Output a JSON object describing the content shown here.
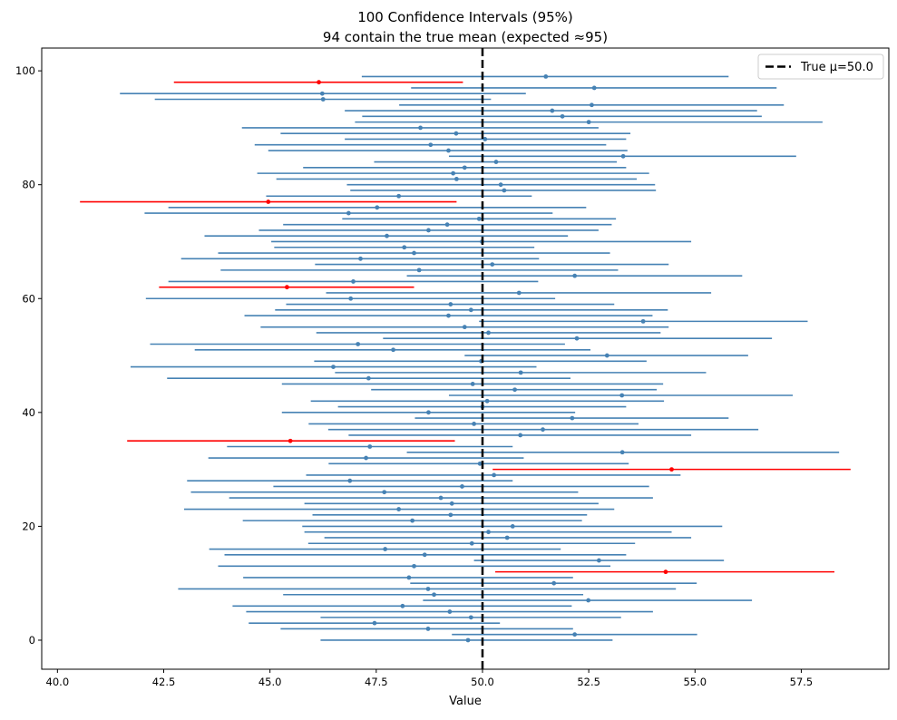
{
  "chart_data": {
    "type": "errorbar",
    "title": "100 Confidence Intervals (95%)",
    "subtitle": "94 contain the true mean (expected ≈95)",
    "xlabel": "Value",
    "ylabel": "",
    "xlim": [
      39.63,
      59.56
    ],
    "ylim": [
      -5.1,
      104.0
    ],
    "x_ticks": [
      "40.0",
      "42.5",
      "45.0",
      "47.5",
      "50.0",
      "52.5",
      "55.0",
      "57.5"
    ],
    "y_ticks": [
      "0",
      "20",
      "40",
      "60",
      "80",
      "100"
    ],
    "true_mean": 50.0,
    "legend": {
      "label": "True μ=50.0",
      "placement": "top-right"
    },
    "colors": {
      "contains": "#4682b4",
      "misses": "#ff0000",
      "true_mean": "#000000"
    },
    "grid": false,
    "intervals": [
      [
        46.19,
        49.66,
        53.06
      ],
      [
        49.28,
        52.17,
        55.05
      ],
      [
        45.25,
        48.72,
        52.13
      ],
      [
        44.5,
        47.46,
        50.41
      ],
      [
        46.19,
        49.73,
        53.26
      ],
      [
        44.44,
        49.23,
        54.01
      ],
      [
        44.12,
        48.12,
        52.1
      ],
      [
        48.6,
        52.49,
        56.34
      ],
      [
        45.31,
        48.86,
        52.37
      ],
      [
        42.84,
        48.72,
        54.55
      ],
      [
        48.3,
        51.68,
        55.04
      ],
      [
        44.37,
        48.27,
        52.13
      ],
      [
        50.3,
        54.31,
        58.28
      ],
      [
        43.78,
        48.39,
        53.01
      ],
      [
        49.8,
        52.74,
        55.68
      ],
      [
        43.93,
        48.64,
        53.38
      ],
      [
        43.57,
        47.71,
        51.84
      ],
      [
        45.9,
        49.75,
        53.59
      ],
      [
        46.28,
        50.58,
        54.91
      ],
      [
        45.81,
        50.14,
        54.45
      ],
      [
        45.76,
        50.71,
        55.64
      ],
      [
        44.36,
        48.35,
        52.34
      ],
      [
        46.0,
        49.25,
        52.46
      ],
      [
        42.98,
        48.03,
        53.1
      ],
      [
        45.81,
        49.28,
        52.73
      ],
      [
        44.04,
        49.02,
        54.01
      ],
      [
        43.14,
        47.69,
        52.25
      ],
      [
        45.08,
        49.52,
        53.92
      ],
      [
        43.05,
        46.88,
        50.71
      ],
      [
        45.85,
        50.27,
        54.66
      ],
      [
        50.24,
        54.45,
        58.66
      ],
      [
        46.38,
        49.94,
        53.44
      ],
      [
        43.55,
        47.26,
        50.97
      ],
      [
        48.22,
        53.29,
        58.39
      ],
      [
        43.99,
        47.35,
        50.71
      ],
      [
        41.64,
        45.48,
        49.35
      ],
      [
        46.85,
        50.89,
        54.91
      ],
      [
        46.37,
        51.42,
        56.49
      ],
      [
        45.91,
        49.8,
        53.67
      ],
      [
        48.41,
        52.11,
        55.79
      ],
      [
        45.28,
        48.73,
        52.18
      ],
      [
        46.6,
        50.0,
        53.38
      ],
      [
        45.96,
        50.11,
        54.27
      ],
      [
        49.21,
        53.28,
        57.3
      ],
      [
        47.38,
        50.76,
        54.1
      ],
      [
        45.28,
        49.77,
        54.25
      ],
      [
        42.58,
        47.32,
        52.07
      ],
      [
        46.53,
        50.9,
        55.26
      ],
      [
        41.72,
        46.49,
        51.27
      ],
      [
        46.04,
        49.97,
        53.86
      ],
      [
        49.58,
        52.93,
        56.25
      ],
      [
        43.23,
        47.9,
        52.54
      ],
      [
        42.18,
        47.07,
        51.94
      ],
      [
        47.66,
        52.22,
        56.81
      ],
      [
        46.09,
        50.14,
        54.19
      ],
      [
        44.78,
        49.58,
        54.38
      ],
      [
        49.92,
        53.78,
        57.65
      ],
      [
        44.4,
        49.2,
        54.0
      ],
      [
        45.12,
        49.73,
        54.36
      ],
      [
        45.38,
        49.25,
        53.1
      ],
      [
        42.08,
        46.9,
        51.71
      ],
      [
        46.32,
        50.86,
        55.38
      ],
      [
        42.39,
        45.4,
        48.39
      ],
      [
        42.61,
        46.96,
        51.31
      ],
      [
        48.22,
        52.17,
        56.11
      ],
      [
        43.84,
        48.51,
        53.19
      ],
      [
        46.06,
        50.23,
        54.38
      ],
      [
        42.91,
        47.13,
        51.33
      ],
      [
        43.78,
        48.39,
        53.0
      ],
      [
        45.1,
        48.16,
        51.22
      ],
      [
        45.03,
        49.99,
        54.91
      ],
      [
        43.46,
        47.75,
        52.01
      ],
      [
        44.74,
        48.73,
        52.73
      ],
      [
        45.31,
        49.17,
        53.04
      ],
      [
        46.7,
        49.92,
        53.14
      ],
      [
        42.05,
        46.85,
        51.65
      ],
      [
        42.61,
        47.52,
        52.44
      ],
      [
        40.53,
        44.96,
        49.39
      ],
      [
        44.91,
        48.03,
        51.16
      ],
      [
        46.89,
        50.51,
        54.08
      ],
      [
        46.81,
        50.43,
        54.06
      ],
      [
        45.15,
        49.39,
        53.63
      ],
      [
        44.7,
        49.31,
        53.92
      ],
      [
        45.78,
        49.58,
        53.38
      ],
      [
        47.45,
        50.32,
        53.16
      ],
      [
        49.21,
        53.31,
        57.38
      ],
      [
        44.96,
        49.2,
        53.41
      ],
      [
        44.64,
        48.78,
        52.91
      ],
      [
        46.76,
        50.06,
        53.38
      ],
      [
        45.25,
        49.38,
        53.48
      ],
      [
        44.34,
        48.54,
        52.73
      ],
      [
        47.0,
        52.5,
        58.0
      ],
      [
        47.17,
        51.88,
        56.57
      ],
      [
        46.76,
        51.64,
        56.46
      ],
      [
        48.04,
        52.57,
        57.09
      ],
      [
        42.29,
        46.25,
        50.2
      ],
      [
        41.47,
        46.23,
        51.02
      ],
      [
        48.32,
        52.63,
        56.92
      ],
      [
        42.74,
        46.15,
        49.54
      ],
      [
        47.16,
        51.49,
        55.79
      ]
    ]
  }
}
